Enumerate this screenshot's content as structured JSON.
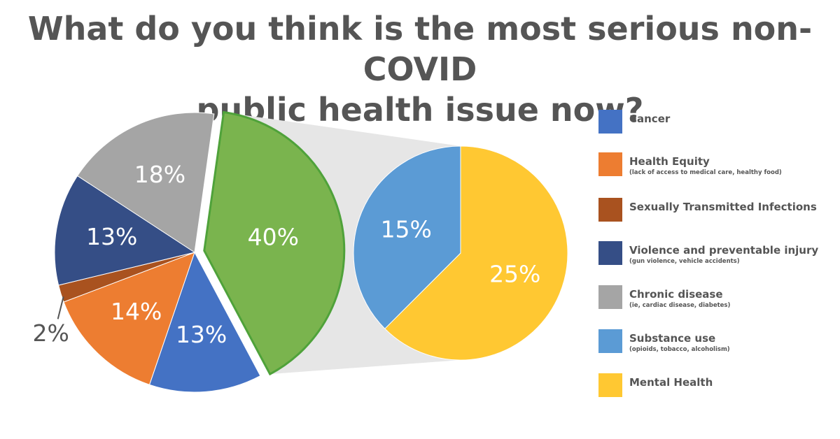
{
  "title": {
    "line1": "What do you think is the most serious non-COVID",
    "line2": "public health issue now?"
  },
  "chart_data": {
    "type": "pie",
    "title": "What do you think is the most serious non-COVID public health issue now?",
    "main_slices": [
      {
        "name": "Cancer",
        "value": 13,
        "label": "13%",
        "color": "#4472C4"
      },
      {
        "name": "Health Equity",
        "value": 14,
        "label": "14%",
        "color": "#ED7D31"
      },
      {
        "name": "Sexually Transmitted Infections",
        "value": 2,
        "label": "2%",
        "color": "#A9521F"
      },
      {
        "name": "Violence and preventable injury",
        "value": 13,
        "label": "13%",
        "color": "#354E86"
      },
      {
        "name": "Chronic disease",
        "value": 18,
        "label": "18%",
        "color": "#A5A5A5"
      },
      {
        "name": "Substance use + Mental Health",
        "value": 40,
        "label": "40%",
        "color": "#7AB44E",
        "exploded": true
      }
    ],
    "breakout_slices": [
      {
        "name": "Substance use",
        "value": 15,
        "label": "15%",
        "color": "#5B9BD5"
      },
      {
        "name": "Mental Health",
        "value": 25,
        "label": "25%",
        "color": "#FFC832"
      }
    ],
    "legend_position": "right"
  },
  "legend": [
    {
      "label": "Cancer",
      "sub": "",
      "color": "#4472C4"
    },
    {
      "label": "Health Equity",
      "sub": "(lack of access to medical care, healthy food)",
      "color": "#ED7D31"
    },
    {
      "label": "Sexually Transmitted Infections",
      "sub": "",
      "color": "#A9521F"
    },
    {
      "label": "Violence and preventable injury",
      "sub": "(gun violence, vehicle accidents)",
      "color": "#354E86"
    },
    {
      "label": "Chronic disease",
      "sub": "(ie, cardiac disease, diabetes)",
      "color": "#A5A5A5"
    },
    {
      "label": "Substance use",
      "sub": "(opioids, tobacco, alcoholism)",
      "color": "#5B9BD5"
    },
    {
      "label": "Mental Health",
      "sub": "",
      "color": "#FFC832"
    }
  ]
}
